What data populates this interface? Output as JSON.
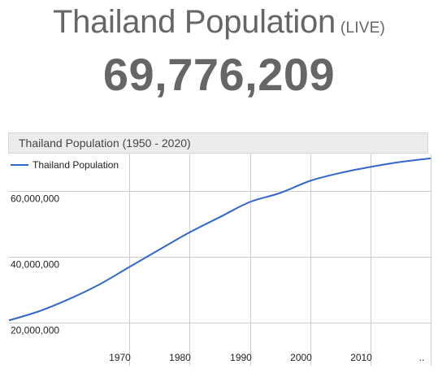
{
  "header": {
    "title": "Thailand Population",
    "live_badge": "(LIVE)",
    "counter": "69,776,209"
  },
  "chart_data": {
    "type": "line",
    "title": "Thailand Population (1950 - 2020)",
    "xlabel": "",
    "ylabel": "",
    "legend_position": "top-left",
    "grid": true,
    "xlim": [
      1950,
      2020
    ],
    "ylim": [
      7000000,
      71000000
    ],
    "x_ticks": [
      1970,
      1980,
      1990,
      2000,
      2010
    ],
    "x_tick_labels": [
      "1970",
      "1980",
      "1990",
      "2000",
      "2010"
    ],
    "trailing_tick_label": "..",
    "y_ticks": [
      20000000,
      40000000,
      60000000
    ],
    "y_tick_labels": [
      "20,000,000",
      "40,000,000",
      "60,000,000"
    ],
    "colors": {
      "series": "#3366cc",
      "grid": "#cccccc"
    },
    "series": [
      {
        "name": "Thailand Population",
        "x": [
          1950,
          1955,
          1960,
          1965,
          1970,
          1975,
          1980,
          1985,
          1990,
          1995,
          2000,
          2005,
          2010,
          2015,
          2020
        ],
        "values": [
          20700000,
          23500000,
          27200000,
          31600000,
          36900000,
          42200000,
          47400000,
          52000000,
          56600000,
          59300000,
          63000000,
          65400000,
          67200000,
          68700000,
          69800000
        ]
      }
    ]
  }
}
